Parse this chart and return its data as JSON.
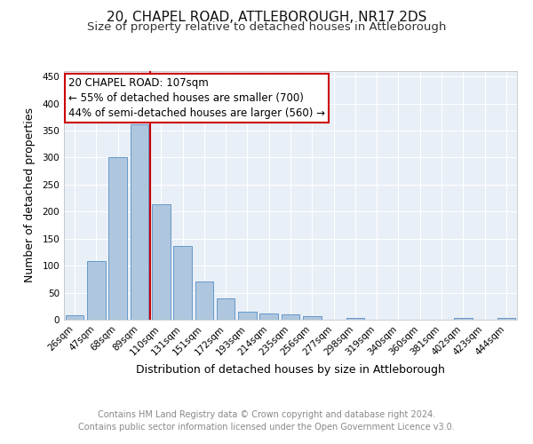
{
  "title_line1": "20, CHAPEL ROAD, ATTLEBOROUGH, NR17 2DS",
  "title_line2": "Size of property relative to detached houses in Attleborough",
  "xlabel": "Distribution of detached houses by size in Attleborough",
  "ylabel": "Number of detached properties",
  "footer_line1": "Contains HM Land Registry data © Crown copyright and database right 2024.",
  "footer_line2": "Contains public sector information licensed under the Open Government Licence v3.0.",
  "bar_labels": [
    "26sqm",
    "47sqm",
    "68sqm",
    "89sqm",
    "110sqm",
    "131sqm",
    "151sqm",
    "172sqm",
    "193sqm",
    "214sqm",
    "235sqm",
    "256sqm",
    "277sqm",
    "298sqm",
    "319sqm",
    "340sqm",
    "360sqm",
    "381sqm",
    "402sqm",
    "423sqm",
    "444sqm"
  ],
  "bar_values": [
    9,
    108,
    301,
    362,
    213,
    137,
    70,
    39,
    15,
    12,
    10,
    6,
    0,
    3,
    0,
    0,
    0,
    0,
    4,
    0,
    4
  ],
  "bar_color": "#aec6de",
  "bar_edge_color": "#6699cc",
  "background_color": "#e8eff7",
  "grid_color": "#ffffff",
  "annotation_label": "20 CHAPEL ROAD: 107sqm",
  "annotation_line1": "← 55% of detached houses are smaller (700)",
  "annotation_line2": "44% of semi-detached houses are larger (560) →",
  "annotation_box_color": "#ffffff",
  "annotation_box_edge_color": "#cc0000",
  "vline_color": "#cc0000",
  "ylim": [
    0,
    460
  ],
  "yticks": [
    0,
    50,
    100,
    150,
    200,
    250,
    300,
    350,
    400,
    450
  ],
  "title_fontsize": 11,
  "subtitle_fontsize": 9.5,
  "xlabel_fontsize": 9,
  "ylabel_fontsize": 9,
  "tick_fontsize": 7.5,
  "footer_fontsize": 7,
  "annot_fontsize": 8.5
}
